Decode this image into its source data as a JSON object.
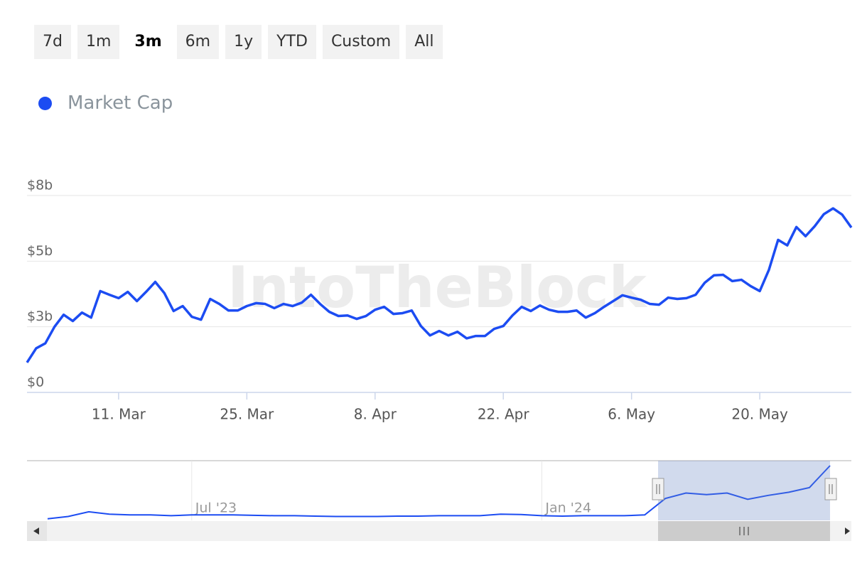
{
  "range_selector": {
    "buttons": [
      "7d",
      "1m",
      "3m",
      "6m",
      "1y",
      "YTD",
      "Custom",
      "All"
    ],
    "selected": 2
  },
  "watermark": "IntoTheBlock",
  "chart_data": [
    {
      "type": "line",
      "categories": [
        null,
        null,
        null,
        null,
        null,
        null,
        null,
        null,
        null,
        null,
        "11. Mar",
        null,
        null,
        null,
        null,
        null,
        null,
        null,
        null,
        null,
        null,
        null,
        null,
        null,
        "25. Mar",
        null,
        null,
        null,
        null,
        null,
        null,
        null,
        null,
        null,
        null,
        null,
        null,
        null,
        "8. Apr",
        null,
        null,
        null,
        null,
        null,
        null,
        null,
        null,
        null,
        null,
        null,
        null,
        null,
        "22. Apr",
        null,
        null,
        null,
        null,
        null,
        null,
        null,
        null,
        null,
        null,
        null,
        null,
        null,
        "6. May",
        null,
        null,
        null,
        null,
        null,
        null,
        null,
        null,
        null,
        null,
        null,
        null,
        null,
        "20. May",
        null,
        null,
        null,
        null,
        null,
        null,
        null,
        null,
        null,
        null
      ],
      "series": [
        {
          "name": "Market Cap",
          "color": "#1c4cf2",
          "values": [
            1.14,
            1.68,
            1.87,
            2.5,
            2.96,
            2.72,
            3.04,
            2.85,
            3.86,
            3.72,
            3.59,
            3.83,
            3.48,
            3.83,
            4.21,
            3.78,
            3.1,
            3.29,
            2.88,
            2.77,
            3.56,
            3.37,
            3.12,
            3.12,
            3.29,
            3.4,
            3.37,
            3.21,
            3.37,
            3.29,
            3.42,
            3.72,
            3.37,
            3.07,
            2.91,
            2.93,
            2.8,
            2.91,
            3.15,
            3.26,
            2.99,
            3.02,
            3.12,
            2.53,
            2.17,
            2.34,
            2.17,
            2.31,
            2.06,
            2.15,
            2.15,
            2.42,
            2.53,
            2.93,
            3.26,
            3.1,
            3.31,
            3.15,
            3.07,
            3.07,
            3.12,
            2.85,
            3.02,
            3.26,
            3.48,
            3.7,
            3.61,
            3.53,
            3.37,
            3.34,
            3.61,
            3.56,
            3.59,
            3.72,
            4.18,
            4.46,
            4.48,
            4.24,
            4.29,
            4.05,
            3.86,
            4.67,
            5.81,
            5.6,
            6.3,
            5.95,
            6.33,
            6.79,
            7.01,
            6.77,
            6.28
          ]
        }
      ],
      "ylim": [
        0,
        7.5
      ],
      "yticks": [
        {
          "value": 0,
          "label": "$0"
        },
        {
          "value": 2.5,
          "label": "$3b"
        },
        {
          "value": 5,
          "label": "$5b"
        },
        {
          "value": 7.5,
          "label": "$8b"
        }
      ],
      "grid": true
    },
    {
      "type": "navigator",
      "categories": [
        null,
        null,
        null,
        null,
        null,
        null,
        null,
        null,
        "Jul '23",
        null,
        null,
        null,
        null,
        null,
        null,
        null,
        null,
        null,
        null,
        null,
        null,
        null,
        null,
        null,
        null,
        "Jan '24",
        null,
        null,
        null,
        null,
        null,
        null,
        null,
        null,
        null,
        null,
        null,
        null,
        null,
        null
      ],
      "series": [
        {
          "color": "#1c4cf2",
          "values": [
            null,
            0.2,
            0.5,
            1.1,
            0.8,
            0.7,
            0.7,
            0.6,
            0.7,
            0.7,
            0.7,
            0.65,
            0.6,
            0.6,
            0.55,
            0.5,
            0.5,
            0.5,
            0.55,
            0.55,
            0.6,
            0.6,
            0.6,
            0.8,
            0.75,
            0.6,
            0.55,
            0.6,
            0.6,
            0.6,
            0.7,
            2.8,
            3.5,
            3.3,
            3.5,
            2.7,
            3.2,
            3.6,
            4.2,
            7.0
          ]
        }
      ],
      "ylim": [
        0,
        7
      ]
    }
  ]
}
